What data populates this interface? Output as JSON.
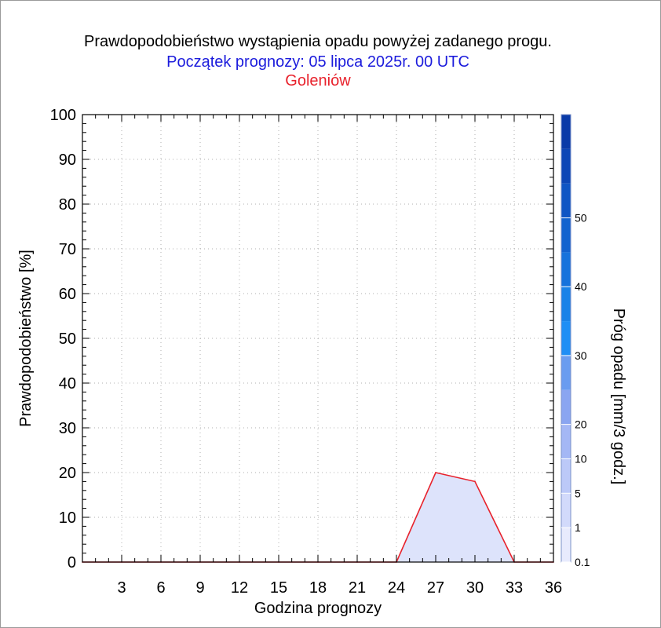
{
  "titles": {
    "main": "Prawdopodobieństwo wystąpienia opadu powyżej zadanego progu.",
    "forecast_start": "Początek prognozy: 05 lipca 2025r. 00 UTC",
    "location": "Goleniów"
  },
  "colors": {
    "title": "#000000",
    "forecast_start": "#1c1cdc",
    "location": "#e8222c",
    "area_fill": "#dde3fb",
    "line": "#e8222c"
  },
  "chart_data": {
    "type": "area",
    "xlabel": "Godzina prognozy",
    "ylabel": "Prawdopodobieństwo [%]",
    "xlim": [
      0,
      36
    ],
    "ylim": [
      0,
      100
    ],
    "x_ticks": [
      "3",
      "6",
      "9",
      "12",
      "15",
      "18",
      "21",
      "24",
      "27",
      "30",
      "33",
      "36"
    ],
    "y_ticks": [
      "0",
      "10",
      "20",
      "30",
      "40",
      "50",
      "60",
      "70",
      "80",
      "90",
      "100"
    ],
    "grid": true,
    "series": [
      {
        "x": [
          0,
          3,
          6,
          9,
          12,
          15,
          18,
          21,
          24,
          27,
          30,
          33,
          36
        ],
        "values": [
          0,
          0,
          0,
          0,
          0,
          0,
          0,
          0,
          0,
          20,
          18,
          0,
          0
        ]
      }
    ],
    "colorbar": {
      "label": "Próg opadu [mm/3 godz.]",
      "tick_labels": [
        "0.1",
        "1",
        "5",
        "10",
        "20",
        "30",
        "40",
        "50"
      ],
      "colors": [
        "#e8ebfd",
        "#d2dafb",
        "#bcc9f8",
        "#a4b7f5",
        "#8aa5f1",
        "#6a9cf0",
        "#1f8ef5",
        "#1a82e8",
        "#1672dc",
        "#1262cf",
        "#0f55c4",
        "#0c46b6",
        "#0a3aa8"
      ]
    }
  }
}
